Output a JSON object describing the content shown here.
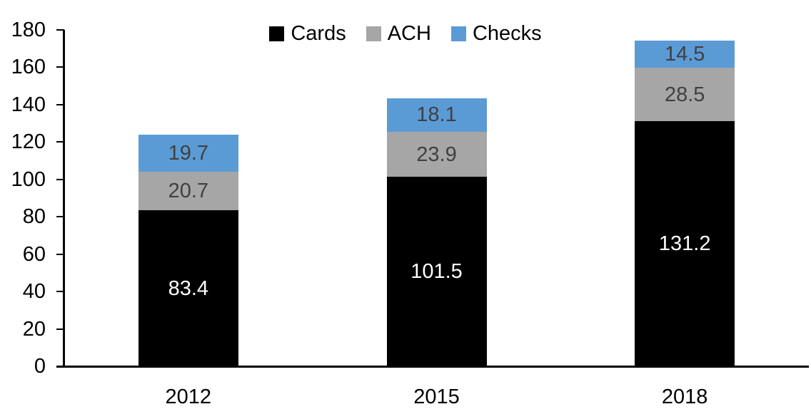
{
  "chart_data": {
    "type": "bar",
    "stacked": true,
    "title": "",
    "xlabel": "",
    "ylabel": "",
    "categories": [
      "2012",
      "2015",
      "2018"
    ],
    "series": [
      {
        "name": "Cards",
        "color": "#000000",
        "label_color": "#ffffff",
        "values": [
          83.4,
          101.5,
          131.2
        ]
      },
      {
        "name": "ACH",
        "color": "#a6a6a6",
        "label_color": "#404040",
        "values": [
          20.7,
          23.9,
          28.5
        ]
      },
      {
        "name": "Checks",
        "color": "#5b9bd5",
        "label_color": "#404040",
        "values": [
          19.7,
          18.1,
          14.5
        ]
      }
    ],
    "stack_totals": [
      123.8,
      143.5,
      174.2
    ],
    "ylim": [
      0,
      180
    ],
    "yticks": [
      0,
      20,
      40,
      60,
      80,
      100,
      120,
      140,
      160,
      180
    ],
    "grid": false,
    "legend_position": "top",
    "legend": [
      "Cards",
      "ACH",
      "Checks"
    ],
    "axis_color": "#000000"
  }
}
